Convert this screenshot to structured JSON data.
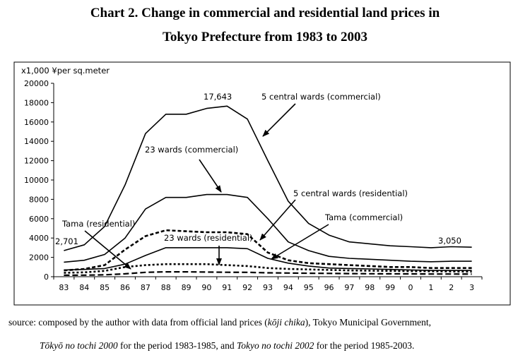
{
  "title_lines": [
    "Chart 2. Change in commercial and residential land prices in",
    "Tokyo Prefecture from 1983 to 2003"
  ],
  "source": {
    "line1_parts": [
      "source: composed by the author with data from official land prices (",
      "kōji chika",
      "), Tokyo Municipal Government,"
    ],
    "line2_parts": [
      "Tōkyō no tochi 2000",
      " for the period 1983-1985, and ",
      "Tokyo no tochi 2002",
      " for the period 1985-2003."
    ]
  },
  "chart_data": {
    "type": "line",
    "ylabel": "x1,000 ¥per sq.meter",
    "ylim": [
      0,
      20000
    ],
    "yticks": [
      0,
      2000,
      4000,
      6000,
      8000,
      10000,
      12000,
      14000,
      16000,
      18000,
      20000
    ],
    "ytick_labels": [
      "0",
      "2000",
      "4000",
      "6000",
      "8000",
      "10000",
      "12000",
      "14000",
      "16000",
      "18000",
      "20000"
    ],
    "categories": [
      "83",
      "84",
      "85",
      "86",
      "87",
      "88",
      "89",
      "90",
      "91",
      "92",
      "93",
      "94",
      "95",
      "96",
      "97",
      "98",
      "99",
      "0",
      "1",
      "2",
      "3"
    ],
    "grid": false,
    "series": [
      {
        "name": "5 central wards (commercial)",
        "style": "solid",
        "values": [
          2701,
          3300,
          5200,
          9500,
          14800,
          16800,
          16800,
          17400,
          17643,
          16300,
          12000,
          7800,
          5500,
          4300,
          3600,
          3400,
          3200,
          3100,
          3000,
          3100,
          3050
        ]
      },
      {
        "name": "23 wards (commercial)",
        "style": "solid",
        "values": [
          1500,
          1700,
          2300,
          4000,
          7000,
          8200,
          8200,
          8500,
          8500,
          8200,
          6000,
          3600,
          2700,
          2100,
          1900,
          1800,
          1700,
          1600,
          1550,
          1600,
          1600
        ]
      },
      {
        "name": "5 central wards (residential)",
        "style": "dashed",
        "values": [
          650,
          800,
          1200,
          2800,
          4200,
          4800,
          4700,
          4600,
          4600,
          4400,
          2500,
          1700,
          1400,
          1300,
          1200,
          1100,
          1000,
          1000,
          900,
          900,
          900
        ]
      },
      {
        "name": "23 wards (residential)",
        "style": "dotted",
        "values": [
          400,
          450,
          600,
          1000,
          1200,
          1300,
          1300,
          1300,
          1200,
          1100,
          900,
          800,
          750,
          700,
          650,
          620,
          600,
          580,
          560,
          540,
          520
        ]
      },
      {
        "name": "Tama (commercial)",
        "style": "solid",
        "values": [
          700,
          750,
          850,
          1300,
          2200,
          3000,
          3000,
          3000,
          3000,
          2900,
          1900,
          1400,
          1100,
          900,
          850,
          800,
          750,
          700,
          650,
          650,
          650
        ]
      },
      {
        "name": "Tama (residential)",
        "style": "dashed-fine",
        "values": [
          150,
          160,
          200,
          300,
          450,
          500,
          500,
          480,
          460,
          450,
          400,
          380,
          360,
          340,
          320,
          310,
          300,
          290,
          280,
          280,
          270
        ]
      }
    ],
    "annotations": [
      {
        "text": "17,643"
      },
      {
        "text": "5 central wards (commercial)"
      },
      {
        "text": "23 wards (commercial)"
      },
      {
        "text": "5 central wards (residential)"
      },
      {
        "text": "Tama (commercial)"
      },
      {
        "text": "Tama (residential)"
      },
      {
        "text": "23 wards (residential)"
      },
      {
        "text": "2,701"
      },
      {
        "text": "3,050"
      }
    ]
  }
}
